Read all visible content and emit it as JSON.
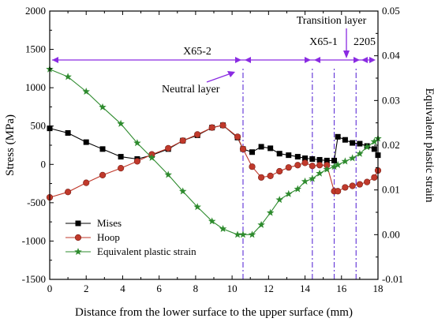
{
  "chart_data": {
    "type": "line",
    "xlabel": "Distance from the lower surface to the upper surface (mm)",
    "ylabel": "Stress (MPa)",
    "y2label": "Equivalent plastic strain",
    "xlim": [
      0,
      18
    ],
    "ylim": [
      -1500,
      2000
    ],
    "y2lim": [
      -0.01,
      0.05
    ],
    "xticks": [
      "0",
      "2",
      "4",
      "6",
      "8",
      "10",
      "12",
      "14",
      "16",
      "18"
    ],
    "yticks": [
      "-1500",
      "-1000",
      "-500",
      "0",
      "500",
      "1000",
      "1500",
      "2000"
    ],
    "y2ticks": [
      "-0.01",
      "0.00",
      "0.01",
      "0.02",
      "0.03",
      "0.04",
      "0.05"
    ],
    "legend_position": "bottom-left",
    "grid": false,
    "annotations": {
      "x65_2": "X65-2",
      "x65_1": "X65-1",
      "s2205": "2205",
      "transition": "Transition layer",
      "neutral": "Neutral layer"
    },
    "boundaries": [
      10.6,
      14.4,
      15.6,
      16.8
    ],
    "series": [
      {
        "name": "Mises",
        "axis": "left",
        "color": "#000000",
        "marker": "square",
        "x": [
          0,
          1,
          2,
          2.9,
          3.9,
          4.8,
          5.6,
          6.5,
          7.3,
          8.1,
          8.9,
          9.5,
          10.3,
          10.6,
          11.1,
          11.6,
          12.1,
          12.6,
          13.1,
          13.6,
          14.0,
          14.4,
          14.8,
          15.2,
          15.6,
          15.8,
          16.2,
          16.6,
          17.0,
          17.4,
          17.8,
          18.0
        ],
        "y": [
          470,
          410,
          290,
          200,
          100,
          70,
          120,
          200,
          310,
          380,
          480,
          510,
          350,
          200,
          160,
          230,
          210,
          140,
          120,
          100,
          80,
          70,
          60,
          50,
          50,
          360,
          320,
          280,
          270,
          240,
          200,
          120
        ]
      },
      {
        "name": "Hoop",
        "axis": "left",
        "color": "#c0392b",
        "marker": "circle",
        "x": [
          0,
          1,
          2,
          2.9,
          3.9,
          4.8,
          5.6,
          6.5,
          7.3,
          8.1,
          8.9,
          9.5,
          10.3,
          10.6,
          11.1,
          11.6,
          12.1,
          12.6,
          13.1,
          13.6,
          14.0,
          14.4,
          14.8,
          15.2,
          15.6,
          15.8,
          16.2,
          16.6,
          17.0,
          17.4,
          17.8,
          18.0
        ],
        "y": [
          -430,
          -360,
          -240,
          -140,
          -50,
          40,
          130,
          210,
          310,
          390,
          480,
          510,
          360,
          200,
          -30,
          -170,
          -150,
          -90,
          -40,
          -10,
          20,
          -20,
          -10,
          -10,
          -350,
          -350,
          -300,
          -280,
          -260,
          -230,
          -170,
          -80
        ]
      },
      {
        "name": "Equivalent plastic strain",
        "axis": "right",
        "color": "#2e8b2e",
        "marker": "star",
        "x": [
          0,
          1,
          2,
          2.9,
          3.9,
          4.8,
          5.6,
          6.5,
          7.3,
          8.1,
          8.9,
          9.5,
          10.3,
          10.6,
          11.1,
          11.6,
          12.1,
          12.6,
          13.1,
          13.6,
          14.0,
          14.4,
          14.8,
          15.2,
          15.6,
          15.8,
          16.2,
          16.6,
          17.0,
          17.4,
          17.8,
          18.0
        ],
        "y": [
          0.037,
          0.0353,
          0.032,
          0.0285,
          0.0248,
          0.0205,
          0.0172,
          0.0134,
          0.0097,
          0.0062,
          0.003,
          0.0013,
          0.0,
          0.0,
          0.0,
          0.0022,
          0.0049,
          0.0078,
          0.0091,
          0.0102,
          0.0119,
          0.0125,
          0.0137,
          0.0146,
          0.0152,
          0.0156,
          0.0164,
          0.0171,
          0.0181,
          0.0196,
          0.0208,
          0.0215
        ]
      }
    ]
  }
}
